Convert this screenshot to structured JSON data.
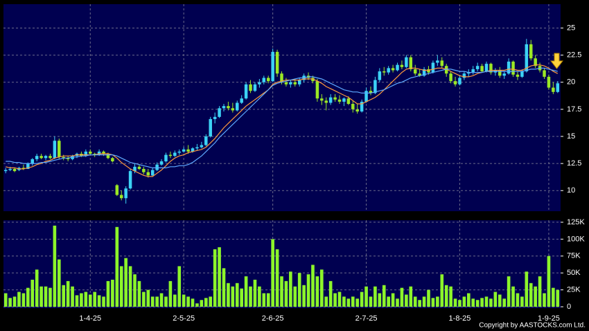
{
  "chart_data": [
    {
      "type": "candlestick",
      "up_color": "#3cd2f5",
      "down_color": "#9be825",
      "ylim": [
        8.1,
        27.2
      ],
      "yticks": [
        10,
        12.5,
        15,
        17.5,
        20,
        22.5,
        25
      ],
      "grid": true,
      "ohlc": [
        [
          11.8,
          12.1,
          11.6,
          11.9
        ],
        [
          11.9,
          12.2,
          11.8,
          12.0
        ],
        [
          12.0,
          12.1,
          11.7,
          11.8
        ],
        [
          11.9,
          12.2,
          11.8,
          12.1
        ],
        [
          12.1,
          12.4,
          11.9,
          12.0
        ],
        [
          12.0,
          12.6,
          12.0,
          12.5
        ],
        [
          12.5,
          13.0,
          12.3,
          12.9
        ],
        [
          12.9,
          13.4,
          12.7,
          13.2
        ],
        [
          13.2,
          13.4,
          12.9,
          13.0
        ],
        [
          13.0,
          13.3,
          12.8,
          13.2
        ],
        [
          13.2,
          13.4,
          12.9,
          13.0
        ],
        [
          13.0,
          15.0,
          12.9,
          14.6
        ],
        [
          14.6,
          14.8,
          12.9,
          13.1
        ],
        [
          13.1,
          13.3,
          12.8,
          13.0
        ],
        [
          13.0,
          13.2,
          12.7,
          12.9
        ],
        [
          12.9,
          13.3,
          12.8,
          13.2
        ],
        [
          13.2,
          13.5,
          13.0,
          13.4
        ],
        [
          13.4,
          13.6,
          13.1,
          13.2
        ],
        [
          13.2,
          13.8,
          13.1,
          13.6
        ],
        [
          13.6,
          13.8,
          13.3,
          13.4
        ],
        [
          13.4,
          13.5,
          13.1,
          13.3
        ],
        [
          13.3,
          13.8,
          13.2,
          13.6
        ],
        [
          13.6,
          13.7,
          13.2,
          13.4
        ],
        [
          13.4,
          13.5,
          12.9,
          13.0
        ],
        [
          13.0,
          13.1,
          12.6,
          12.7
        ],
        [
          10.5,
          10.6,
          9.5,
          9.6
        ],
        [
          9.6,
          10.0,
          9.1,
          9.3
        ],
        [
          9.3,
          10.4,
          8.8,
          10.2
        ],
        [
          10.2,
          12.0,
          10.1,
          11.8
        ],
        [
          11.8,
          12.5,
          11.6,
          12.2
        ],
        [
          12.2,
          12.4,
          11.9,
          12.0
        ],
        [
          12.0,
          12.2,
          11.5,
          11.7
        ],
        [
          11.7,
          12.0,
          11.2,
          11.4
        ],
        [
          11.4,
          12.1,
          11.3,
          11.9
        ],
        [
          11.9,
          12.6,
          11.8,
          12.4
        ],
        [
          12.4,
          12.9,
          12.3,
          12.7
        ],
        [
          12.7,
          13.5,
          12.6,
          13.3
        ],
        [
          13.3,
          13.6,
          13.0,
          13.2
        ],
        [
          13.2,
          13.7,
          13.1,
          13.5
        ],
        [
          13.5,
          13.8,
          13.3,
          13.6
        ],
        [
          13.6,
          14.0,
          13.5,
          13.8
        ],
        [
          13.8,
          14.2,
          13.4,
          13.6
        ],
        [
          13.6,
          14.0,
          13.5,
          13.9
        ],
        [
          13.9,
          14.3,
          13.7,
          14.0
        ],
        [
          14.0,
          14.5,
          13.9,
          14.2
        ],
        [
          14.2,
          15.2,
          14.1,
          15.0
        ],
        [
          15.0,
          16.8,
          14.9,
          16.6
        ],
        [
          16.6,
          17.2,
          16.2,
          16.8
        ],
        [
          16.8,
          17.8,
          16.7,
          17.6
        ],
        [
          17.6,
          18.0,
          17.3,
          17.8
        ],
        [
          17.8,
          18.2,
          17.4,
          17.6
        ],
        [
          17.6,
          18.1,
          17.2,
          17.4
        ],
        [
          17.4,
          18.3,
          17.3,
          18.1
        ],
        [
          18.1,
          18.8,
          18.0,
          18.5
        ],
        [
          18.5,
          20.0,
          18.4,
          19.8
        ],
        [
          19.8,
          20.2,
          19.0,
          19.2
        ],
        [
          19.2,
          20.0,
          19.1,
          19.8
        ],
        [
          19.8,
          20.3,
          19.5,
          20.0
        ],
        [
          20.0,
          20.6,
          19.8,
          20.4
        ],
        [
          20.4,
          20.6,
          19.9,
          20.1
        ],
        [
          20.1,
          23.1,
          20.0,
          22.8
        ],
        [
          22.8,
          23.0,
          20.5,
          20.8
        ],
        [
          20.8,
          21.0,
          19.8,
          20.0
        ],
        [
          20.0,
          20.4,
          19.6,
          19.8
        ],
        [
          19.8,
          20.2,
          19.5,
          20.0
        ],
        [
          20.0,
          20.3,
          19.6,
          19.8
        ],
        [
          19.8,
          20.4,
          19.6,
          20.2
        ],
        [
          20.2,
          20.8,
          20.0,
          20.6
        ],
        [
          20.6,
          20.9,
          20.2,
          20.4
        ],
        [
          20.4,
          20.6,
          19.9,
          20.1
        ],
        [
          20.1,
          20.3,
          18.2,
          18.5
        ],
        [
          18.5,
          18.9,
          17.9,
          18.3
        ],
        [
          18.3,
          18.6,
          17.4,
          18.1
        ],
        [
          18.1,
          18.9,
          17.9,
          18.6
        ],
        [
          18.6,
          18.9,
          18.2,
          18.4
        ],
        [
          18.4,
          18.8,
          18.0,
          18.2
        ],
        [
          18.2,
          18.6,
          17.8,
          18.5
        ],
        [
          18.5,
          18.7,
          17.9,
          18.0
        ],
        [
          18.0,
          18.3,
          17.2,
          17.5
        ],
        [
          17.5,
          18.0,
          17.1,
          17.3
        ],
        [
          17.3,
          18.4,
          17.2,
          18.2
        ],
        [
          18.2,
          19.5,
          18.1,
          19.2
        ],
        [
          19.2,
          19.6,
          18.8,
          19.0
        ],
        [
          19.0,
          20.5,
          18.9,
          20.2
        ],
        [
          20.2,
          21.3,
          20.0,
          21.0
        ],
        [
          21.0,
          21.4,
          20.6,
          20.9
        ],
        [
          20.9,
          21.5,
          20.7,
          21.3
        ],
        [
          21.3,
          21.6,
          20.9,
          21.1
        ],
        [
          21.1,
          21.8,
          21.0,
          21.6
        ],
        [
          21.6,
          22.0,
          21.2,
          21.4
        ],
        [
          21.4,
          22.5,
          21.3,
          22.3
        ],
        [
          22.3,
          22.5,
          21.0,
          21.2
        ],
        [
          21.2,
          21.6,
          20.6,
          20.8
        ],
        [
          20.8,
          21.2,
          20.5,
          20.6
        ],
        [
          20.6,
          21.4,
          20.5,
          21.2
        ],
        [
          21.2,
          21.5,
          20.7,
          20.9
        ],
        [
          20.9,
          22.0,
          20.8,
          21.8
        ],
        [
          21.8,
          22.5,
          21.5,
          22.0
        ],
        [
          22.0,
          22.3,
          21.3,
          21.5
        ],
        [
          21.5,
          21.7,
          20.5,
          20.8
        ],
        [
          20.8,
          21.0,
          19.9,
          20.1
        ],
        [
          20.1,
          20.5,
          19.6,
          19.8
        ],
        [
          19.8,
          20.6,
          19.7,
          20.4
        ],
        [
          20.4,
          21.0,
          20.2,
          20.8
        ],
        [
          20.8,
          21.2,
          20.5,
          20.9
        ],
        [
          20.9,
          21.5,
          20.7,
          21.2
        ],
        [
          21.2,
          21.8,
          21.0,
          21.5
        ],
        [
          21.5,
          21.7,
          20.9,
          21.0
        ],
        [
          21.0,
          21.9,
          20.9,
          21.7
        ],
        [
          21.7,
          21.8,
          20.7,
          20.9
        ],
        [
          20.9,
          21.3,
          20.6,
          21.1
        ],
        [
          21.1,
          21.4,
          20.4,
          20.6
        ],
        [
          20.6,
          21.0,
          20.3,
          20.8
        ],
        [
          20.8,
          22.2,
          20.7,
          21.9
        ],
        [
          21.9,
          22.0,
          20.5,
          20.7
        ],
        [
          20.7,
          21.0,
          20.2,
          20.5
        ],
        [
          20.5,
          21.2,
          20.4,
          21.0
        ],
        [
          21.0,
          24.0,
          20.9,
          23.5
        ],
        [
          23.5,
          23.9,
          22.0,
          22.2
        ],
        [
          22.2,
          22.5,
          21.3,
          21.5
        ],
        [
          21.5,
          21.8,
          20.9,
          21.1
        ],
        [
          21.1,
          21.3,
          20.3,
          20.5
        ],
        [
          20.5,
          20.7,
          19.3,
          19.5
        ],
        [
          19.5,
          20.0,
          18.9,
          19.1
        ],
        [
          19.1,
          20.1,
          19.0,
          19.9
        ]
      ],
      "series": [
        {
          "color": "#ff9a3c",
          "values": [
            12.2,
            12.1,
            12.1,
            12.0,
            12.0,
            12.1,
            12.2,
            12.4,
            12.5,
            12.7,
            12.8,
            13.0,
            13.1,
            13.2,
            13.2,
            13.2,
            13.3,
            13.3,
            13.3,
            13.3,
            13.3,
            13.4,
            13.4,
            13.4,
            13.3,
            13.0,
            12.6,
            12.3,
            12.0,
            11.8,
            11.6,
            11.4,
            11.3,
            11.3,
            11.6,
            11.9,
            12.3,
            12.7,
            13.0,
            13.2,
            13.3,
            13.5,
            13.6,
            13.7,
            13.8,
            14.0,
            14.4,
            14.8,
            15.3,
            15.8,
            16.2,
            16.6,
            17.0,
            17.4,
            17.8,
            18.1,
            18.4,
            18.7,
            19.0,
            19.3,
            19.8,
            20.0,
            20.1,
            20.2,
            20.2,
            20.2,
            20.2,
            20.3,
            20.3,
            20.3,
            20.1,
            19.9,
            19.6,
            19.4,
            19.2,
            19.0,
            18.8,
            18.6,
            18.3,
            18.0,
            18.0,
            18.2,
            18.4,
            18.6,
            18.9,
            19.3,
            19.7,
            20.1,
            20.5,
            20.9,
            21.2,
            21.3,
            21.3,
            21.2,
            21.1,
            21.1,
            21.2,
            21.3,
            21.3,
            21.2,
            21.0,
            20.8,
            20.6,
            20.5,
            20.5,
            20.6,
            20.8,
            20.9,
            21.0,
            21.1,
            21.1,
            21.1,
            21.1,
            21.2,
            21.2,
            21.1,
            21.1,
            21.3,
            21.5,
            21.6,
            21.6,
            21.5,
            21.3,
            21.0,
            20.8
          ]
        },
        {
          "color": "#5eaaff",
          "values": [
            12.7,
            12.7,
            12.6,
            12.6,
            12.5,
            12.5,
            12.5,
            12.5,
            12.6,
            12.6,
            12.7,
            12.8,
            12.9,
            13.0,
            13.0,
            13.1,
            13.1,
            13.2,
            13.2,
            13.3,
            13.3,
            13.3,
            13.3,
            13.3,
            13.3,
            13.2,
            13.0,
            12.8,
            12.6,
            12.5,
            12.4,
            12.3,
            12.2,
            12.1,
            12.1,
            12.1,
            12.1,
            12.2,
            12.2,
            12.3,
            12.3,
            12.4,
            12.6,
            12.9,
            13.2,
            13.6,
            14.0,
            14.4,
            14.9,
            15.3,
            15.7,
            16.1,
            16.5,
            16.9,
            17.3,
            17.7,
            18.1,
            18.5,
            18.9,
            19.3,
            19.7,
            19.9,
            20.0,
            20.1,
            20.2,
            20.3,
            20.4,
            20.4,
            20.5,
            20.5,
            20.4,
            20.3,
            20.1,
            19.9,
            19.7,
            19.5,
            19.3,
            19.2,
            19.1,
            19.1,
            19.0,
            19.0,
            19.0,
            19.1,
            19.2,
            19.3,
            19.5,
            19.7,
            19.9,
            20.0,
            20.2,
            20.4,
            20.5,
            20.6,
            20.7,
            20.8,
            20.9,
            21.0,
            21.1,
            21.2,
            21.2,
            21.1,
            21.0,
            21.0,
            20.9,
            20.9,
            20.9,
            20.9,
            21.0,
            21.0,
            21.0,
            21.0,
            21.0,
            21.0,
            21.0,
            21.0,
            21.0,
            21.1,
            21.2,
            21.2,
            21.3,
            21.3,
            21.2,
            21.1,
            21.0
          ]
        }
      ]
    },
    {
      "type": "bar",
      "color": "#8cf52a",
      "ylim": [
        0,
        128000
      ],
      "yticks": [
        0,
        {
          "value": 25000,
          "label": "25K"
        },
        {
          "value": 50000,
          "label": "50K"
        },
        {
          "value": 75000,
          "label": "75K"
        },
        {
          "value": 100000,
          "label": "100K"
        },
        {
          "value": 125000,
          "label": "125K"
        }
      ],
      "grid": true,
      "categories": [
        null,
        null,
        null,
        null,
        null,
        null,
        null,
        null,
        null,
        null,
        null,
        null,
        null,
        null,
        null,
        null,
        null,
        null,
        null,
        "1-4-25",
        null,
        null,
        null,
        null,
        null,
        null,
        null,
        null,
        null,
        null,
        null,
        null,
        null,
        null,
        null,
        null,
        null,
        null,
        null,
        null,
        "2-5-25",
        null,
        null,
        null,
        null,
        null,
        null,
        null,
        null,
        null,
        null,
        null,
        null,
        null,
        null,
        null,
        null,
        null,
        null,
        null,
        "2-6-25",
        null,
        null,
        null,
        null,
        null,
        null,
        null,
        null,
        null,
        null,
        null,
        null,
        null,
        null,
        null,
        null,
        null,
        null,
        null,
        null,
        "2-7-25",
        null,
        null,
        null,
        null,
        null,
        null,
        null,
        null,
        null,
        null,
        null,
        null,
        null,
        null,
        null,
        null,
        null,
        null,
        null,
        null,
        "1-8-25",
        null,
        null,
        null,
        null,
        null,
        null,
        null,
        null,
        null,
        null,
        null,
        null,
        null,
        null,
        null,
        null,
        null,
        null,
        null,
        "1-9-25",
        null,
        null
      ],
      "values": [
        20000,
        13000,
        15000,
        22000,
        20000,
        28000,
        40000,
        55000,
        30000,
        30000,
        28000,
        120000,
        70000,
        32000,
        38000,
        30000,
        17000,
        20000,
        22000,
        18000,
        22000,
        17000,
        15000,
        38000,
        40000,
        118000,
        60000,
        72000,
        60000,
        48000,
        38000,
        22000,
        25000,
        15000,
        15000,
        20000,
        15000,
        38000,
        18000,
        60000,
        18000,
        15000,
        12000,
        5000,
        10000,
        13000,
        15000,
        85000,
        88000,
        57000,
        35000,
        30000,
        35000,
        27000,
        45000,
        30000,
        40000,
        30000,
        20000,
        20000,
        100000,
        85000,
        45000,
        38000,
        52000,
        30000,
        50000,
        32000,
        48000,
        62000,
        45000,
        55000,
        15000,
        38000,
        20000,
        22000,
        15000,
        12000,
        15000,
        12000,
        22000,
        30000,
        15000,
        30000,
        20000,
        32000,
        15000,
        20000,
        12000,
        28000,
        18000,
        30000,
        15000,
        10000,
        15000,
        25000,
        13000,
        15000,
        48000,
        32000,
        30000,
        12000,
        10000,
        15000,
        20000,
        12000,
        10000,
        13000,
        15000,
        12000,
        22000,
        18000,
        12000,
        45000,
        30000,
        20000,
        15000,
        52000,
        35000,
        30000,
        45000,
        20000,
        75000,
        28000,
        25000
      ],
      "caption": "Copyright by AASTOCKS.com Ltd."
    }
  ]
}
